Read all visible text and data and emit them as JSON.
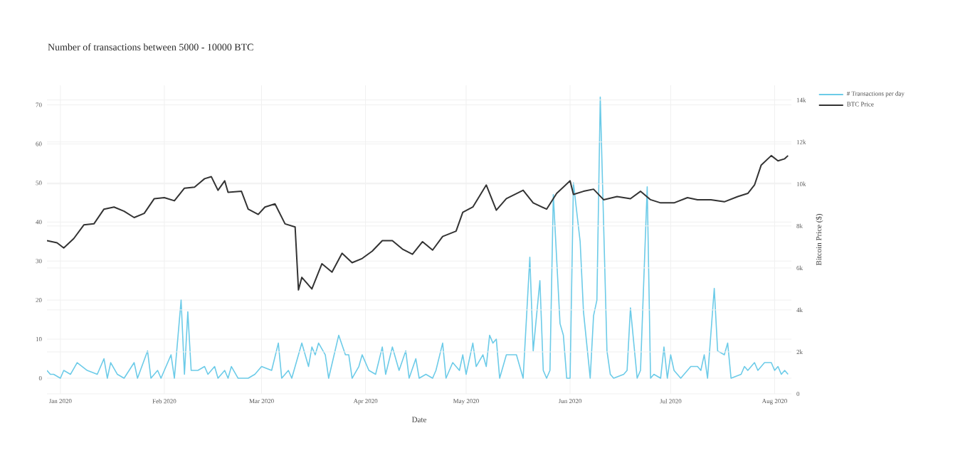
{
  "chart_data": {
    "type": "line",
    "title": "Number of transactions between 5000 - 10000 BTC",
    "xlabel": "Date",
    "y2label": "Bitcoin Price ($)",
    "xlim": [
      "2019-12-28",
      "2020-08-06"
    ],
    "xticks": [
      {
        "value": "2020-01-01",
        "label": "Jan 2020"
      },
      {
        "value": "2020-02-01",
        "label": "Feb 2020"
      },
      {
        "value": "2020-03-01",
        "label": "Mar 2020"
      },
      {
        "value": "2020-04-01",
        "label": "Apr 2020"
      },
      {
        "value": "2020-05-01",
        "label": "May 2020"
      },
      {
        "value": "2020-06-01",
        "label": "Jun 2020"
      },
      {
        "value": "2020-07-01",
        "label": "Jul 2020"
      },
      {
        "value": "2020-08-01",
        "label": "Aug 2020"
      }
    ],
    "ylim": [
      -4,
      75
    ],
    "yticks": [
      0,
      10,
      20,
      30,
      40,
      50,
      60,
      70
    ],
    "y2lim": [
      0,
      14700
    ],
    "y2ticks": [
      0,
      {
        "value": 2000,
        "label": "2k"
      },
      {
        "value": 4000,
        "label": "4k"
      },
      {
        "value": 6000,
        "label": "6k"
      },
      {
        "value": 8000,
        "label": "8k"
      },
      {
        "value": 10000,
        "label": "10k"
      },
      {
        "value": 12000,
        "label": "12k"
      },
      {
        "value": 14000,
        "label": "14k"
      }
    ],
    "grid": true,
    "legend": "top right",
    "series": [
      {
        "name": "# Transactions per day",
        "color": "#6ccbe8",
        "x": [
          "2019-12-28",
          "2019-12-29",
          "2019-12-30",
          "2020-01-01",
          "2020-01-02",
          "2020-01-04",
          "2020-01-06",
          "2020-01-09",
          "2020-01-12",
          "2020-01-14",
          "2020-01-15",
          "2020-01-16",
          "2020-01-18",
          "2020-01-20",
          "2020-01-23",
          "2020-01-24",
          "2020-01-27",
          "2020-01-28",
          "2020-01-30",
          "2020-01-31",
          "2020-02-01",
          "2020-02-03",
          "2020-02-04",
          "2020-02-06",
          "2020-02-07",
          "2020-02-08",
          "2020-02-09",
          "2020-02-11",
          "2020-02-13",
          "2020-02-14",
          "2020-02-16",
          "2020-02-17",
          "2020-02-19",
          "2020-02-20",
          "2020-02-21",
          "2020-02-23",
          "2020-02-26",
          "2020-02-28",
          "2020-03-01",
          "2020-03-04",
          "2020-03-06",
          "2020-03-07",
          "2020-03-09",
          "2020-03-10",
          "2020-03-13",
          "2020-03-15",
          "2020-03-16",
          "2020-03-17",
          "2020-03-18",
          "2020-03-20",
          "2020-03-21",
          "2020-03-24",
          "2020-03-26",
          "2020-03-27",
          "2020-03-28",
          "2020-03-30",
          "2020-03-31",
          "2020-04-02",
          "2020-04-04",
          "2020-04-06",
          "2020-04-07",
          "2020-04-09",
          "2020-04-11",
          "2020-04-13",
          "2020-04-14",
          "2020-04-16",
          "2020-04-17",
          "2020-04-19",
          "2020-04-21",
          "2020-04-22",
          "2020-04-24",
          "2020-04-25",
          "2020-04-27",
          "2020-04-29",
          "2020-04-30",
          "2020-05-01",
          "2020-05-03",
          "2020-05-04",
          "2020-05-06",
          "2020-05-07",
          "2020-05-08",
          "2020-05-09",
          "2020-05-10",
          "2020-05-11",
          "2020-05-13",
          "2020-05-15",
          "2020-05-16",
          "2020-05-18",
          "2020-05-20",
          "2020-05-21",
          "2020-05-23",
          "2020-05-24",
          "2020-05-25",
          "2020-05-26",
          "2020-05-27",
          "2020-05-29",
          "2020-05-30",
          "2020-05-31",
          "2020-06-01",
          "2020-06-02",
          "2020-06-04",
          "2020-06-05",
          "2020-06-07",
          "2020-06-08",
          "2020-06-09",
          "2020-06-10",
          "2020-06-12",
          "2020-06-13",
          "2020-06-14",
          "2020-06-17",
          "2020-06-18",
          "2020-06-19",
          "2020-06-21",
          "2020-06-22",
          "2020-06-24",
          "2020-06-25",
          "2020-06-26",
          "2020-06-28",
          "2020-06-29",
          "2020-06-30",
          "2020-07-01",
          "2020-07-02",
          "2020-07-04",
          "2020-07-07",
          "2020-07-09",
          "2020-07-10",
          "2020-07-11",
          "2020-07-12",
          "2020-07-14",
          "2020-07-15",
          "2020-07-17",
          "2020-07-18",
          "2020-07-19",
          "2020-07-22",
          "2020-07-23",
          "2020-07-24",
          "2020-07-26",
          "2020-07-27",
          "2020-07-29",
          "2020-07-31",
          "2020-08-01",
          "2020-08-02",
          "2020-08-03",
          "2020-08-04",
          "2020-08-05"
        ],
        "values": [
          2,
          1,
          1,
          0,
          2,
          1,
          4,
          2,
          1,
          5,
          0,
          4,
          1,
          0,
          4,
          0,
          7,
          0,
          2,
          0,
          2,
          6,
          0,
          20,
          1,
          17,
          2,
          2,
          3,
          1,
          3,
          0,
          2,
          0,
          3,
          0,
          0,
          1,
          3,
          2,
          9,
          0,
          2,
          0,
          9,
          3,
          8,
          6,
          9,
          6,
          0,
          11,
          6,
          6,
          0,
          3,
          6,
          2,
          1,
          8,
          1,
          8,
          2,
          7,
          0,
          5,
          0,
          1,
          0,
          2,
          9,
          0,
          4,
          2,
          6,
          1,
          9,
          3,
          6,
          3,
          11,
          9,
          10,
          0,
          6,
          6,
          6,
          0,
          31,
          7,
          25,
          2,
          0,
          2,
          47,
          14,
          11,
          0,
          0,
          50,
          35,
          17,
          0,
          16,
          20,
          72,
          7,
          1,
          0,
          1,
          2,
          18,
          0,
          2,
          49,
          0,
          1,
          0,
          8,
          0,
          6,
          2,
          0,
          3,
          3,
          2,
          6,
          0,
          23,
          7,
          6,
          9,
          0,
          1,
          3,
          2,
          4,
          2,
          4,
          4,
          2,
          3,
          1,
          2,
          1
        ]
      },
      {
        "name": "BTC Price",
        "color": "#333333",
        "axis": "y2",
        "x": [
          "2019-12-28",
          "2019-12-31",
          "2020-01-02",
          "2020-01-05",
          "2020-01-08",
          "2020-01-11",
          "2020-01-14",
          "2020-01-17",
          "2020-01-20",
          "2020-01-23",
          "2020-01-26",
          "2020-01-29",
          "2020-02-01",
          "2020-02-04",
          "2020-02-07",
          "2020-02-10",
          "2020-02-13",
          "2020-02-15",
          "2020-02-17",
          "2020-02-19",
          "2020-02-20",
          "2020-02-24",
          "2020-02-26",
          "2020-02-29",
          "2020-03-02",
          "2020-03-05",
          "2020-03-08",
          "2020-03-11",
          "2020-03-12",
          "2020-03-13",
          "2020-03-16",
          "2020-03-19",
          "2020-03-22",
          "2020-03-25",
          "2020-03-28",
          "2020-03-31",
          "2020-04-03",
          "2020-04-06",
          "2020-04-09",
          "2020-04-12",
          "2020-04-15",
          "2020-04-18",
          "2020-04-21",
          "2020-04-24",
          "2020-04-28",
          "2020-04-30",
          "2020-05-03",
          "2020-05-07",
          "2020-05-10",
          "2020-05-13",
          "2020-05-18",
          "2020-05-21",
          "2020-05-25",
          "2020-05-28",
          "2020-06-01",
          "2020-06-02",
          "2020-06-05",
          "2020-06-08",
          "2020-06-11",
          "2020-06-15",
          "2020-06-19",
          "2020-06-22",
          "2020-06-25",
          "2020-06-28",
          "2020-07-02",
          "2020-07-06",
          "2020-07-09",
          "2020-07-13",
          "2020-07-17",
          "2020-07-21",
          "2020-07-24",
          "2020-07-26",
          "2020-07-28",
          "2020-07-31",
          "2020-08-02",
          "2020-08-04",
          "2020-08-05"
        ],
        "values": [
          7300,
          7200,
          6950,
          7400,
          8050,
          8100,
          8800,
          8900,
          8700,
          8400,
          8600,
          9300,
          9350,
          9200,
          9800,
          9850,
          10250,
          10350,
          9700,
          10150,
          9600,
          9650,
          8800,
          8550,
          8900,
          9050,
          8100,
          7950,
          4950,
          5550,
          5000,
          6200,
          5800,
          6700,
          6250,
          6450,
          6800,
          7300,
          7300,
          6900,
          6650,
          7250,
          6850,
          7500,
          7750,
          8650,
          8900,
          9950,
          8750,
          9300,
          9700,
          9100,
          8800,
          9550,
          10150,
          9500,
          9650,
          9750,
          9250,
          9400,
          9300,
          9650,
          9250,
          9100,
          9100,
          9350,
          9250,
          9250,
          9150,
          9400,
          9550,
          9950,
          10900,
          11350,
          11100,
          11200,
          11350
        ]
      }
    ]
  }
}
